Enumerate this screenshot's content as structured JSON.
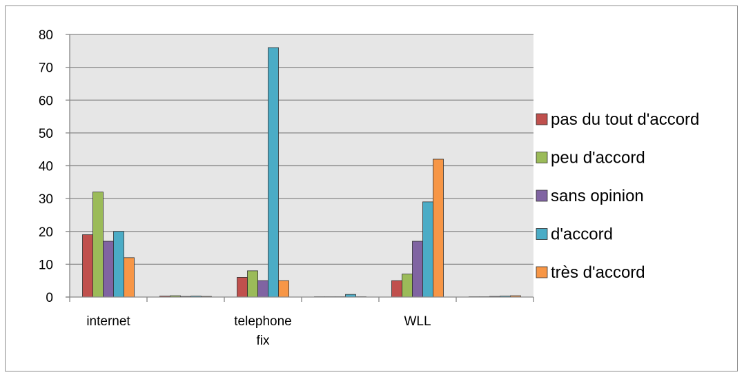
{
  "chart_data": {
    "type": "bar",
    "categories": [
      "internet",
      "",
      "telephone fix",
      "",
      "WLL",
      ""
    ],
    "category_lines": [
      [
        "internet"
      ],
      [
        ""
      ],
      [
        "telephone",
        "fix"
      ],
      [
        ""
      ],
      [
        "WLL"
      ],
      [
        ""
      ]
    ],
    "series": [
      {
        "name": "pas du tout d'accord",
        "color": "#C0504D",
        "values": [
          19,
          0.3,
          6,
          0.1,
          5,
          0.1
        ]
      },
      {
        "name": "peu d'accord",
        "color": "#9BBB59",
        "values": [
          32,
          0.4,
          8,
          0.1,
          7,
          0.1
        ]
      },
      {
        "name": "sans opinion",
        "color": "#8064A2",
        "values": [
          17,
          0.2,
          5,
          0.1,
          17,
          0.2
        ]
      },
      {
        "name": "d'accord",
        "color": "#4BACC6",
        "values": [
          20,
          0.3,
          76,
          0.8,
          29,
          0.3
        ]
      },
      {
        "name": "très d'accord",
        "color": "#F79646",
        "values": [
          12,
          0.2,
          5,
          0.1,
          42,
          0.4
        ]
      }
    ],
    "ylim": [
      0,
      80
    ],
    "yticks": [
      0,
      10,
      20,
      30,
      40,
      50,
      60,
      70,
      80
    ],
    "title": "",
    "xlabel": "",
    "ylabel": "",
    "grid": true,
    "plot_background": "#E6E6E6",
    "legend_position": "right"
  }
}
